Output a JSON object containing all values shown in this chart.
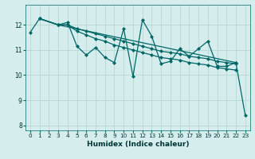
{
  "xlabel": "Humidex (Indice chaleur)",
  "ylabel": "",
  "xlim": [
    -0.5,
    23.5
  ],
  "ylim": [
    7.8,
    12.8
  ],
  "xticks": [
    0,
    1,
    2,
    3,
    4,
    5,
    6,
    7,
    8,
    9,
    10,
    11,
    12,
    13,
    14,
    15,
    16,
    17,
    18,
    19,
    20,
    21,
    22,
    23
  ],
  "yticks": [
    8,
    9,
    10,
    11,
    12
  ],
  "background_color": "#d5eeed",
  "grid_color": "#b8d8d5",
  "line_color": "#006666",
  "lines": [
    {
      "x": [
        0,
        1,
        3,
        22,
        23
      ],
      "y": [
        11.7,
        12.25,
        12.0,
        10.5,
        8.4
      ]
    },
    {
      "x": [
        1,
        3,
        4,
        5,
        6,
        7,
        8,
        9,
        10,
        11,
        12,
        13,
        14,
        15,
        16,
        17,
        18,
        19,
        20,
        21,
        22
      ],
      "y": [
        12.25,
        12.0,
        12.0,
        11.85,
        11.75,
        11.65,
        11.55,
        11.45,
        11.35,
        11.25,
        11.15,
        11.05,
        10.95,
        10.9,
        10.85,
        10.75,
        10.7,
        10.65,
        10.55,
        10.5,
        10.45
      ]
    },
    {
      "x": [
        1,
        3,
        4,
        5,
        6,
        7,
        8,
        9,
        10,
        11,
        12,
        13,
        14,
        15,
        16,
        17,
        18,
        19,
        20,
        21,
        22
      ],
      "y": [
        12.25,
        12.0,
        12.0,
        11.75,
        11.6,
        11.45,
        11.35,
        11.2,
        11.1,
        11.0,
        10.9,
        10.8,
        10.7,
        10.65,
        10.6,
        10.5,
        10.45,
        10.4,
        10.3,
        10.25,
        10.2
      ]
    },
    {
      "x": [
        1,
        3,
        4,
        5,
        6,
        7,
        8,
        9,
        10,
        11,
        12,
        13,
        14,
        15,
        16,
        17,
        18,
        19,
        20,
        21,
        22
      ],
      "y": [
        12.25,
        12.0,
        12.1,
        11.15,
        10.8,
        11.1,
        10.7,
        10.5,
        11.85,
        9.95,
        12.2,
        11.55,
        10.45,
        10.55,
        11.05,
        10.75,
        11.05,
        11.35,
        10.35,
        10.35,
        10.5
      ]
    }
  ],
  "marker": "D",
  "markersize": 2.0,
  "linewidth": 0.9
}
